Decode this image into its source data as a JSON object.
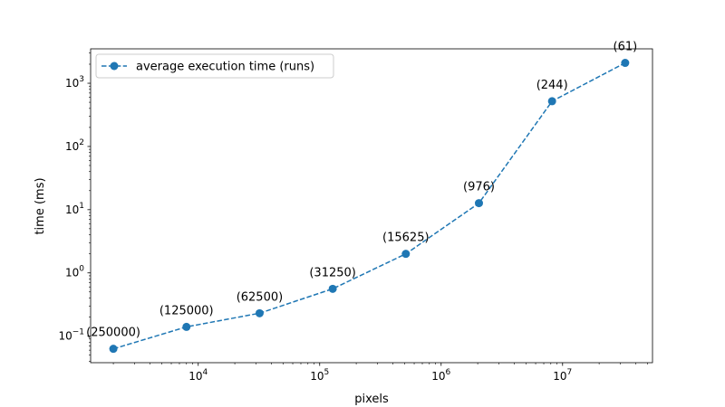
{
  "chart_data": {
    "type": "line",
    "xlabel": "pixels",
    "ylabel": "time (ms)",
    "x_scale": "log",
    "y_scale": "log",
    "xlim": [
      1300,
      55000000
    ],
    "ylim": [
      0.038,
      3500
    ],
    "x_ticks": [
      {
        "value": 10000,
        "base": "10",
        "exp": "4"
      },
      {
        "value": 100000,
        "base": "10",
        "exp": "5"
      },
      {
        "value": 1000000,
        "base": "10",
        "exp": "6"
      },
      {
        "value": 10000000,
        "base": "10",
        "exp": "7"
      }
    ],
    "y_ticks": [
      {
        "value": 0.1,
        "base": "10",
        "exp": "−1"
      },
      {
        "value": 1,
        "base": "10",
        "exp": "0"
      },
      {
        "value": 10,
        "base": "10",
        "exp": "1"
      },
      {
        "value": 100,
        "base": "10",
        "exp": "2"
      },
      {
        "value": 1000,
        "base": "10",
        "exp": "3"
      }
    ],
    "grid": false,
    "legend_position": "top-left",
    "series": [
      {
        "name": "average execution time (runs)",
        "color": "#1f77b4",
        "line_style": "dashed",
        "marker": "circle",
        "x": [
          2000,
          8000,
          32000,
          128000,
          512000,
          2048000,
          8192000,
          32768000
        ],
        "y": [
          0.063,
          0.14,
          0.23,
          0.56,
          2.0,
          12.7,
          520,
          2100
        ],
        "point_labels": [
          "(250000)",
          "(125000)",
          "(62500)",
          "(31250)",
          "(15625)",
          "(976)",
          "(244)",
          "(61)"
        ]
      }
    ]
  }
}
